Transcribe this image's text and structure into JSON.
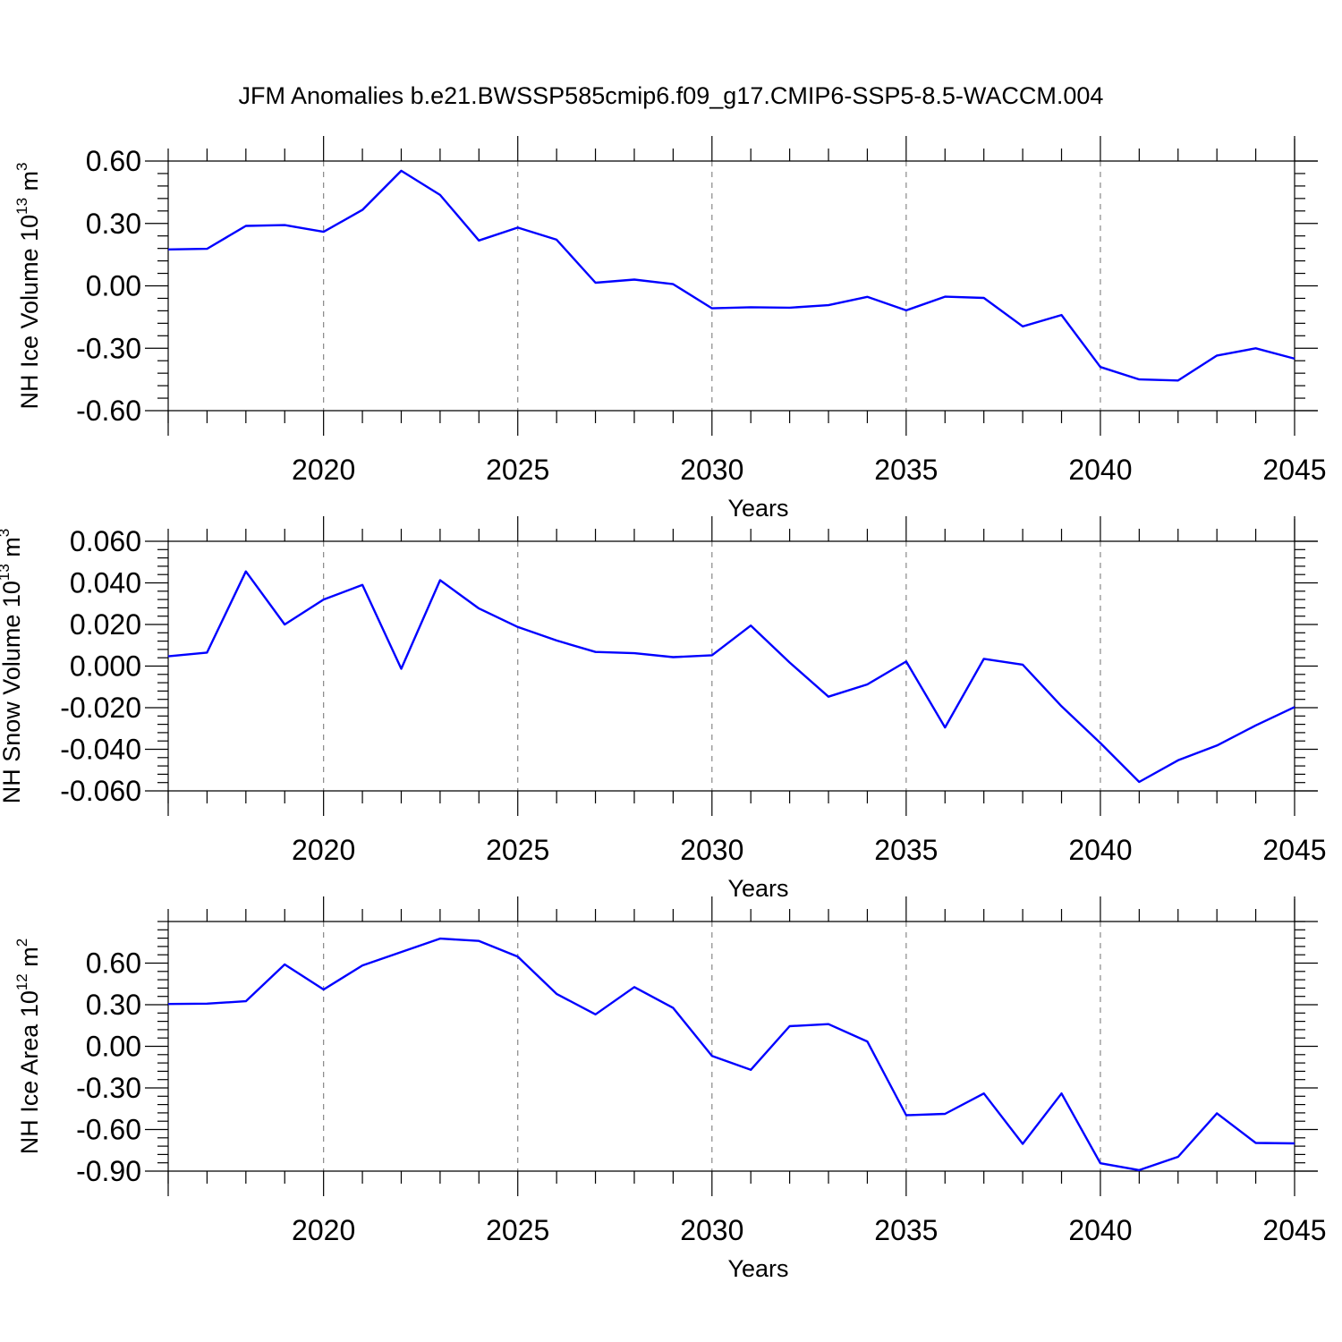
{
  "title": "JFM Anomalies b.e21.BWSSP585cmip6.f09_g17.CMIP6-SSP5-8.5-WACCM.004",
  "colors": {
    "line": "#0000ff",
    "axis": "#000000",
    "grid": "#888888"
  },
  "chart_data": [
    {
      "type": "line",
      "ylabel_text": "NH Ice Volume 10",
      "ylabel_exp": "13",
      "ylabel_unit": " m",
      "ylabel_unit_exp": "3",
      "xlabel": "Years",
      "xlim": [
        2016,
        2045
      ],
      "ylim": [
        -0.6,
        0.6
      ],
      "yticks": [
        -0.6,
        -0.3,
        0.0,
        0.3,
        0.6
      ],
      "ytick_labels": [
        "-0.60",
        "-0.30",
        "0.00",
        "0.30",
        "0.60"
      ],
      "xticks": [
        2020,
        2025,
        2030,
        2035,
        2040,
        2045
      ],
      "xtick_labels": [
        "2020",
        "2025",
        "2030",
        "2035",
        "2040",
        "2045"
      ],
      "grid": "vertical dashed at major x ticks",
      "series": [
        {
          "name": "NH Ice Volume",
          "x": [
            2016,
            2017,
            2018,
            2019,
            2020,
            2021,
            2022,
            2023,
            2024,
            2025,
            2026,
            2027,
            2028,
            2029,
            2030,
            2031,
            2032,
            2033,
            2034,
            2035,
            2036,
            2037,
            2038,
            2039,
            2040,
            2041,
            2042,
            2043,
            2044,
            2045
          ],
          "values": [
            0.175,
            0.178,
            0.288,
            0.292,
            0.26,
            0.365,
            0.553,
            0.437,
            0.218,
            0.28,
            0.222,
            0.015,
            0.03,
            0.008,
            -0.108,
            -0.103,
            -0.105,
            -0.093,
            -0.053,
            -0.118,
            -0.052,
            -0.058,
            -0.195,
            -0.14,
            -0.39,
            -0.45,
            -0.455,
            -0.335,
            -0.3,
            -0.35
          ]
        }
      ]
    },
    {
      "type": "line",
      "ylabel_text": "NH Snow Volume 10",
      "ylabel_exp": "13",
      "ylabel_unit": " m",
      "ylabel_unit_exp": "3",
      "xlabel": "Years",
      "xlim": [
        2016,
        2045
      ],
      "ylim": [
        -0.06,
        0.06
      ],
      "yticks": [
        -0.06,
        -0.04,
        -0.02,
        0.0,
        0.02,
        0.04,
        0.06
      ],
      "ytick_labels": [
        "-0.060",
        "-0.040",
        "-0.020",
        "0.000",
        "0.020",
        "0.040",
        "0.060"
      ],
      "xticks": [
        2020,
        2025,
        2030,
        2035,
        2040,
        2045
      ],
      "xtick_labels": [
        "2020",
        "2025",
        "2030",
        "2035",
        "2040",
        "2045"
      ],
      "grid": "vertical dashed at major x ticks",
      "series": [
        {
          "name": "NH Snow Volume",
          "x": [
            2016,
            2017,
            2018,
            2019,
            2020,
            2021,
            2022,
            2023,
            2024,
            2025,
            2026,
            2027,
            2028,
            2029,
            2030,
            2031,
            2032,
            2033,
            2034,
            2035,
            2036,
            2037,
            2038,
            2039,
            2040,
            2041,
            2042,
            2043,
            2044,
            2045
          ],
          "values": [
            0.0047,
            0.0065,
            0.0455,
            0.02,
            0.032,
            0.039,
            -0.0013,
            0.0413,
            0.0277,
            0.0188,
            0.0123,
            0.0068,
            0.0062,
            0.0043,
            0.0052,
            0.0195,
            0.0017,
            -0.0147,
            -0.0088,
            0.0022,
            -0.0295,
            0.0035,
            0.0007,
            -0.0193,
            -0.037,
            -0.0557,
            -0.0453,
            -0.0382,
            -0.0285,
            -0.0197
          ]
        }
      ]
    },
    {
      "type": "line",
      "ylabel_text": "NH Ice Area 10",
      "ylabel_exp": "12",
      "ylabel_unit": " m",
      "ylabel_unit_exp": "2",
      "xlabel": "Years",
      "xlim": [
        2016,
        2045
      ],
      "ylim": [
        -0.9,
        0.9
      ],
      "yticks": [
        -0.9,
        -0.6,
        -0.3,
        0.0,
        0.3,
        0.6
      ],
      "ytick_labels": [
        "-0.90",
        "-0.60",
        "-0.30",
        "0.00",
        "0.30",
        "0.60"
      ],
      "xticks": [
        2020,
        2025,
        2030,
        2035,
        2040,
        2045
      ],
      "xtick_labels": [
        "2020",
        "2025",
        "2030",
        "2035",
        "2040",
        "2045"
      ],
      "grid": "vertical dashed at major x ticks",
      "series": [
        {
          "name": "NH Ice Area",
          "x": [
            2016,
            2017,
            2018,
            2019,
            2020,
            2021,
            2022,
            2023,
            2024,
            2025,
            2026,
            2027,
            2028,
            2029,
            2030,
            2031,
            2032,
            2033,
            2034,
            2035,
            2036,
            2037,
            2038,
            2039,
            2040,
            2041,
            2042,
            2043,
            2044,
            2045
          ],
          "values": [
            0.305,
            0.308,
            0.325,
            0.59,
            0.41,
            0.583,
            0.68,
            0.777,
            0.76,
            0.647,
            0.378,
            0.23,
            0.427,
            0.277,
            -0.07,
            -0.17,
            0.145,
            0.16,
            0.035,
            -0.497,
            -0.487,
            -0.34,
            -0.703,
            -0.34,
            -0.843,
            -0.893,
            -0.797,
            -0.483,
            -0.697,
            -0.7
          ]
        }
      ]
    }
  ]
}
